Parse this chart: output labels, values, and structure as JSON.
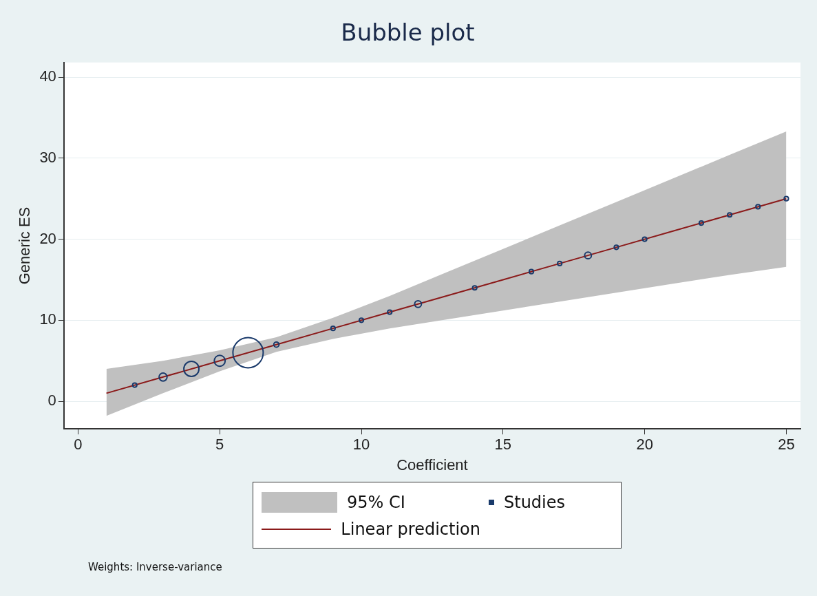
{
  "chart_data": {
    "type": "bubble",
    "title": "Bubble plot",
    "xlabel": "Coefficient",
    "ylabel": "Generic ES",
    "xlim": [
      -0.5,
      25.5
    ],
    "xticks": [
      0,
      5,
      10,
      15,
      20,
      25
    ],
    "ylim": [
      -3.4,
      41.8
    ],
    "yticks": [
      0,
      10,
      20,
      30,
      40
    ],
    "grid": "y",
    "legend": "bottom",
    "series": [
      {
        "name": "Linear prediction",
        "type": "line",
        "color": "#8b1a1a",
        "marker": "none",
        "x": [
          1,
          3,
          5,
          7,
          9,
          11,
          13,
          15,
          17,
          19,
          21,
          23,
          25
        ],
        "values": [
          1,
          3,
          5,
          7,
          9,
          11,
          13,
          15,
          17,
          19,
          21,
          23,
          25
        ],
        "lower": [
          -1.8,
          1.0,
          3.7,
          6.1,
          7.7,
          9.0,
          10.1,
          11.2,
          12.3,
          13.4,
          14.5,
          15.6,
          16.6
        ],
        "upper": [
          4.0,
          5.0,
          6.3,
          7.9,
          10.3,
          13.0,
          15.9,
          18.8,
          21.7,
          24.6,
          27.5,
          30.4,
          33.3
        ]
      },
      {
        "name": "Studies",
        "type": "bubble",
        "color": "#1a3a6b",
        "marker": "circle",
        "x": [
          2,
          3,
          4,
          5,
          6,
          7,
          9,
          10,
          11,
          12,
          14,
          16,
          17,
          18,
          19,
          20,
          22,
          23,
          24,
          25
        ],
        "values": [
          2,
          3,
          4,
          5,
          6,
          7,
          9,
          10,
          11,
          12,
          14,
          16,
          17,
          18,
          19,
          20,
          22,
          23,
          24,
          25
        ],
        "sizes": [
          0.02,
          0.07,
          0.25,
          0.13,
          1,
          0.03,
          0.02,
          0.02,
          0.02,
          0.05,
          0.02,
          0.02,
          0.02,
          0.05,
          0.02,
          0.02,
          0.02,
          0.02,
          0.02,
          0.02
        ]
      }
    ],
    "annotations": [
      {
        "text": "95% CI"
      },
      "Weights: Inverse-variance"
    ]
  }
}
